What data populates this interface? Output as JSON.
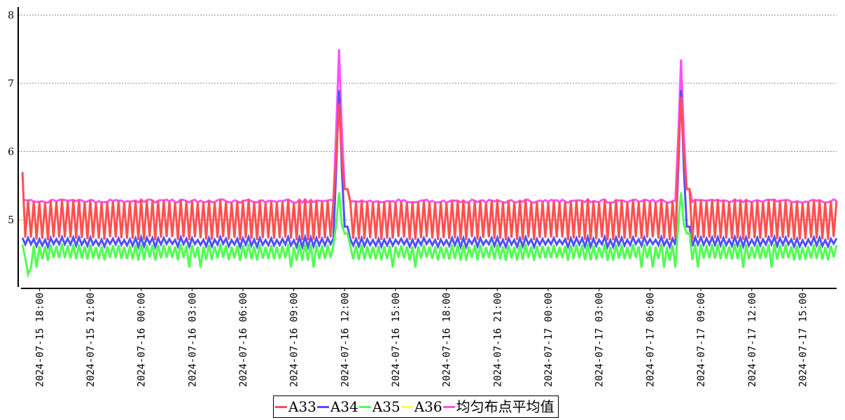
{
  "chart_data": {
    "type": "line",
    "title": "",
    "xlabel": "",
    "ylabel": "",
    "ylim": [
      4.0,
      8.1
    ],
    "yticks": [
      5,
      6,
      7,
      8
    ],
    "grid": "horizontal-dotted",
    "legend_position": "bottom-center",
    "x_range": [
      "2024-07-15 16:45",
      "2024-07-17 17:30"
    ],
    "xticks": [
      "2024-07-15 18:00",
      "2024-07-15 21:00",
      "2024-07-16 00:00",
      "2024-07-16 03:00",
      "2024-07-16 06:00",
      "2024-07-16 09:00",
      "2024-07-16 12:00",
      "2024-07-16 15:00",
      "2024-07-16 18:00",
      "2024-07-16 21:00",
      "2024-07-17 00:00",
      "2024-07-17 03:00",
      "2024-07-17 06:00",
      "2024-07-17 09:00",
      "2024-07-17 12:00",
      "2024-07-17 15:00"
    ],
    "sampling": "every 10 minutes from 2024-07-15 17:00 to 2024-07-17 17:00",
    "series": [
      {
        "name": "A33",
        "color": "#ff5050",
        "pattern": "oscillates between 4.7 and 5.3; spikes 6.7 at 2024-07-16 11:40 and 6.8 at 2024-07-17 07:50; starts at 5.7"
      },
      {
        "name": "A34",
        "color": "#5050ff",
        "pattern": "oscillates between 4.6 and 4.75; spikes 6.9 at 2024-07-16 11:40 and 6.9 at 2024-07-17 07:50"
      },
      {
        "name": "A35",
        "color": "#50ff50",
        "pattern": "oscillates between 4.4 and 4.65, occasional lows 4.3; spikes 5.4 at 2024-07-16 11:40 and 5.4 at 2024-07-17 07:50; min 4.2 near 2024-07-15 17:20"
      },
      {
        "name": "A36",
        "color": "#ffff50",
        "pattern": "not visible (hidden behind other series)"
      },
      {
        "name": "均匀布点平均值",
        "color": "#ff50ff",
        "pattern": "around 5.25-5.3; spikes 7.5 at 2024-07-16 11:40 and 7.35 at 2024-07-17 07:50"
      }
    ],
    "spikes": [
      "2024-07-16 11:40",
      "2024-07-17 07:50"
    ],
    "levels": {
      "A33": {
        "low": 4.7,
        "high": 5.3,
        "spike": [
          6.7,
          6.8
        ],
        "start": 5.7
      },
      "A34": {
        "low": 4.6,
        "high": 4.75,
        "spike": [
          6.9,
          6.9
        ]
      },
      "A35": {
        "low": 4.4,
        "high": 4.65,
        "dip": 4.3,
        "spike": [
          5.4,
          5.4
        ],
        "min": 4.2
      },
      "avg": {
        "low": 5.25,
        "high": 5.3,
        "spike": [
          7.5,
          7.35
        ]
      }
    }
  },
  "legend": [
    {
      "label": "A33",
      "color": "#ff5050"
    },
    {
      "label": "A34",
      "color": "#5050ff"
    },
    {
      "label": "A35",
      "color": "#50ff50"
    },
    {
      "label": "A36",
      "color": "#ffff50"
    },
    {
      "label": "均匀布点平均值",
      "color": "#ff50ff"
    }
  ]
}
